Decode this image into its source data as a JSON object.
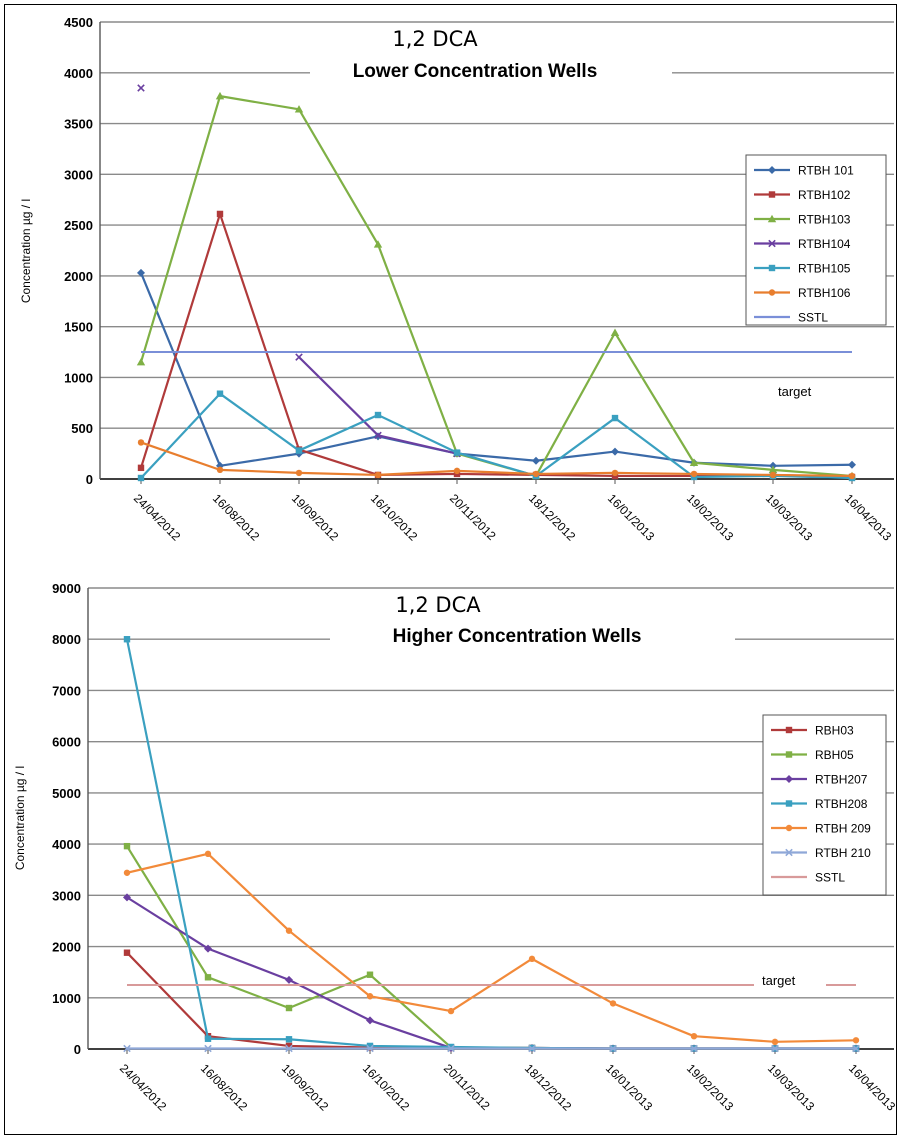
{
  "chart_data": [
    {
      "type": "line",
      "title": "1,2 DCA",
      "subtitle": "Lower Concentration Wells",
      "ylabel": "Concentration µg / l",
      "xlabel": "",
      "ylim": [
        0,
        4500
      ],
      "yticks": [
        0,
        500,
        1000,
        1500,
        2000,
        2500,
        3000,
        3500,
        4000,
        4500
      ],
      "categories": [
        "24/04/2012",
        "16/08/2012",
        "19/09/2012",
        "16/10/2012",
        "20/11/2012",
        "18/12/2012",
        "16/01/2013",
        "19/02/2013",
        "19/03/2013",
        "16/04/2013"
      ],
      "grid": true,
      "legend_position": "right",
      "series": [
        {
          "name": "RTBH 101",
          "color": "#3b6aa8",
          "marker": "diamond",
          "values": [
            2030,
            130,
            250,
            420,
            250,
            180,
            270,
            160,
            130,
            140
          ]
        },
        {
          "name": "RTBH102",
          "color": "#b03a3a",
          "marker": "square",
          "values": [
            110,
            2610,
            290,
            40,
            50,
            40,
            30,
            30,
            40,
            20
          ]
        },
        {
          "name": "RTBH103",
          "color": "#7fb045",
          "marker": "triangle",
          "values": [
            1150,
            3770,
            3640,
            2310,
            250,
            30,
            1440,
            160,
            90,
            30
          ]
        },
        {
          "name": "RTBH104",
          "color": "#6a3fa0",
          "marker": "x",
          "values": [
            3850,
            null,
            1200,
            430,
            250,
            null,
            null,
            null,
            null,
            null
          ]
        },
        {
          "name": "RTBH105",
          "color": "#3aa0c0",
          "marker": "square",
          "values": [
            10,
            840,
            280,
            630,
            260,
            30,
            600,
            20,
            30,
            10
          ]
        },
        {
          "name": "RTBH106",
          "color": "#e87e2e",
          "marker": "circle",
          "values": [
            360,
            90,
            60,
            40,
            80,
            50,
            60,
            50,
            40,
            30
          ]
        },
        {
          "name": "SSTL",
          "color": "#7a8fd8",
          "marker": "none",
          "values": [
            1250,
            1250,
            1250,
            1250,
            1250,
            1250,
            1250,
            1250,
            1250,
            1250
          ]
        }
      ],
      "annotations": [
        "target"
      ]
    },
    {
      "type": "line",
      "title": "1,2 DCA",
      "subtitle": "Higher Concentration Wells",
      "ylabel": "Concentration µg / l",
      "xlabel": "",
      "ylim": [
        0,
        9000
      ],
      "yticks": [
        0,
        1000,
        2000,
        3000,
        4000,
        5000,
        6000,
        7000,
        8000,
        9000
      ],
      "categories": [
        "24/04/2012",
        "16/08/2012",
        "19/09/2012",
        "16/10/2012",
        "20/11/2012",
        "18/12/2012",
        "16/01/2013",
        "19/02/2013",
        "19/03/2013",
        "16/04/2013"
      ],
      "grid": true,
      "legend_position": "right",
      "series": [
        {
          "name": "RBH03",
          "color": "#b03a3a",
          "marker": "square",
          "values": [
            1880,
            250,
            60,
            30,
            20,
            20,
            10,
            10,
            10,
            10
          ]
        },
        {
          "name": "RBH05",
          "color": "#7fb045",
          "marker": "square",
          "values": [
            3960,
            1400,
            800,
            1450,
            30,
            20,
            10,
            10,
            10,
            10
          ]
        },
        {
          "name": "RTBH207",
          "color": "#6a3fa0",
          "marker": "diamond",
          "values": [
            2960,
            1960,
            1350,
            560,
            20,
            20,
            10,
            10,
            10,
            10
          ]
        },
        {
          "name": "RTBH208",
          "color": "#3aa0c0",
          "marker": "square",
          "values": [
            8000,
            200,
            190,
            60,
            40,
            20,
            10,
            10,
            10,
            10
          ]
        },
        {
          "name": "RTBH 209",
          "color": "#f28a3a",
          "marker": "circle",
          "values": [
            3440,
            3810,
            2310,
            1030,
            740,
            1760,
            890,
            250,
            140,
            170
          ]
        },
        {
          "name": "RTBH 210",
          "color": "#8fa8d8",
          "marker": "x",
          "values": [
            10,
            10,
            10,
            10,
            10,
            10,
            10,
            10,
            10,
            10
          ]
        },
        {
          "name": "SSTL",
          "color": "#d89a9a",
          "marker": "none",
          "values": [
            1250,
            1250,
            1250,
            1250,
            1250,
            1250,
            1250,
            1250,
            1250,
            1250
          ]
        }
      ],
      "annotations": [
        "target"
      ]
    }
  ]
}
